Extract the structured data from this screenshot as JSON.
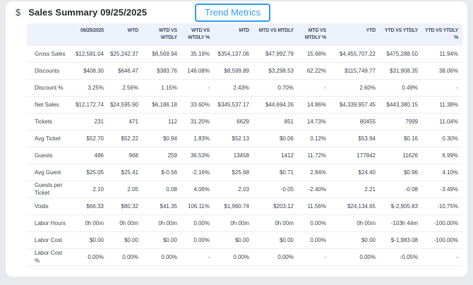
{
  "header": {
    "dollar_icon": "$",
    "title": "Sales Summary 09/25/2025",
    "trend_button_label": "Trend Metrics"
  },
  "colors": {
    "accent_blue": "#2d9cf4",
    "page_background": "#e9eaee",
    "card_background": "#ffffff",
    "table_header_band": "#edf1f9",
    "header_text": "#3e4965",
    "body_text": "#3a404f"
  },
  "table": {
    "columns": [
      "",
      "09/25/2025",
      "WTD",
      "WTD VS\nWTDLY",
      "WTD VS\nWTDLY %",
      "MTD",
      "MTD VS MTDLY",
      "MTD VS\nMTDLY %",
      "YTD",
      "YTD VS YTDLY",
      "YTD VS YTDLY\n%"
    ],
    "rows": [
      {
        "label": "Gross Sales",
        "values": [
          "$12,581.04",
          "$25,242.37",
          "$6,569.94",
          "35.19%",
          "$354,137.06",
          "$47,992.79",
          "15.68%",
          "$4,455,707.22",
          "$475,288.50",
          "11.94%"
        ]
      },
      {
        "label": "Discounts",
        "values": [
          "$408.30",
          "$646.47",
          "$383.76",
          "146.08%",
          "$8,599.89",
          "$3,298.53",
          "62.22%",
          "$115,749.77",
          "$31,908.35",
          "38.06%"
        ]
      },
      {
        "label": "Discount %",
        "values": [
          "3.25%",
          "2.56%",
          "1.15%",
          "-",
          "2.43%",
          "0.70%",
          "-",
          "2.60%",
          "0.49%",
          "-"
        ]
      },
      {
        "label": "Net Sales",
        "values": [
          "$12,172.74",
          "$24,595.90",
          "$6,186.18",
          "33.60%",
          "$345,537.17",
          "$44,694.26",
          "14.86%",
          "$4,339,957.45",
          "$443,380.15",
          "11.38%"
        ]
      },
      {
        "label": "Tickets",
        "values": [
          "231",
          "471",
          "112",
          "31.20%",
          "6629",
          "851",
          "14.73%",
          "80455",
          "7999",
          "11.04%"
        ]
      },
      {
        "label": "Avg Ticket",
        "values": [
          "$52.70",
          "$52.22",
          "$0.94",
          "1.83%",
          "$52.13",
          "$0.06",
          "0.12%",
          "$53.94",
          "$0.16",
          "0.30%"
        ]
      },
      {
        "label": "Guests",
        "values": [
          "486",
          "968",
          "259",
          "36.53%",
          "13458",
          "1412",
          "11.72%",
          "177842",
          "11626",
          "6.99%"
        ]
      },
      {
        "label": "Avg Guest",
        "values": [
          "$25.05",
          "$25.41",
          "$-0.56",
          "-2.16%",
          "$25.68",
          "$0.71",
          "2.84%",
          "$24.40",
          "$0.96",
          "4.10%"
        ]
      },
      {
        "label": "Guests per Ticket",
        "values": [
          "2.10",
          "2.05",
          "0.08",
          "4.06%",
          "2.03",
          "-0.05",
          "-2.40%",
          "2.21",
          "-0.08",
          "-3.49%"
        ]
      },
      {
        "label": "Voids",
        "values": [
          "$66.33",
          "$80.32",
          "$41.35",
          "106.11%",
          "$1,960.74",
          "$203.12",
          "11.56%",
          "$24,134.65",
          "$-2,905.83",
          "-10.75%"
        ]
      },
      {
        "label": "Labor Hours",
        "values": [
          "0h 00m",
          "0h 00m",
          "0h 00m",
          "0.00%",
          "0h 00m",
          "0h 00m",
          "0.00%",
          "0h 00m",
          "-103h 44m",
          "-100.00%"
        ]
      },
      {
        "label": "Labor Cost",
        "values": [
          "$0.00",
          "$0.00",
          "$0.00",
          "0.00%",
          "$0.00",
          "$0.00",
          "0.00%",
          "$0.00",
          "$-1,983.08",
          "-100.00%"
        ]
      },
      {
        "label": "Labor Cost %",
        "values": [
          "0.00%",
          "0.00%",
          "0.00%",
          "-",
          "0.00%",
          "0.00%",
          "-",
          "0.00%",
          "-0.05%",
          "-"
        ]
      }
    ]
  }
}
